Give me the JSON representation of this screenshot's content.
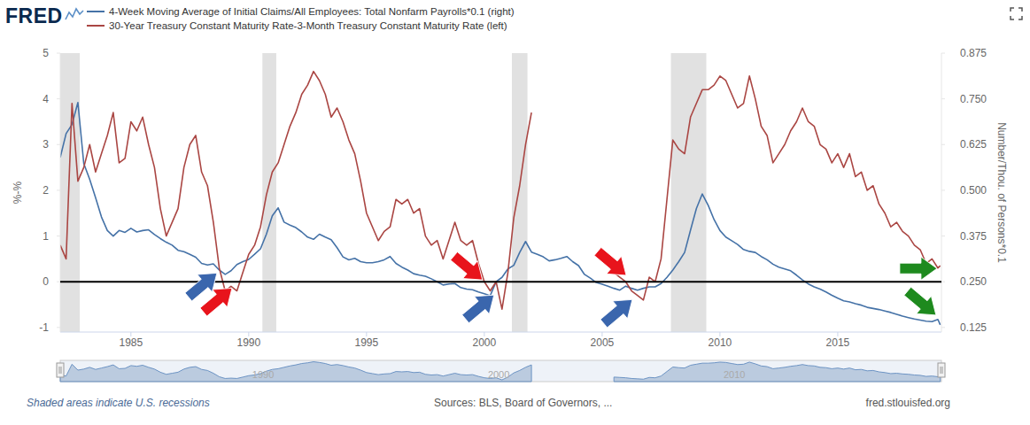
{
  "chart_data": {
    "type": "line",
    "logo": "FRED",
    "note": "Shaded areas indicate U.S. recessions",
    "source": "Sources: BLS, Board of Governors, ...",
    "website": "fred.stlouisfed.org",
    "y_label": "%-%",
    "y2_label": "Number/Thou. of Persons*0.1",
    "legend": "top",
    "grid": false,
    "x": [
      1982,
      1982.25,
      1982.5,
      1982.75,
      1983,
      1983.25,
      1983.5,
      1983.75,
      1984,
      1984.25,
      1984.5,
      1984.75,
      1985,
      1985.25,
      1985.5,
      1985.75,
      1986,
      1986.25,
      1986.5,
      1986.75,
      1987,
      1987.25,
      1987.5,
      1987.75,
      1988,
      1988.25,
      1988.5,
      1988.75,
      1989,
      1989.25,
      1989.5,
      1989.75,
      1990,
      1990.25,
      1990.5,
      1990.75,
      1991,
      1991.25,
      1991.5,
      1991.75,
      1992,
      1992.25,
      1992.5,
      1992.75,
      1993,
      1993.25,
      1993.5,
      1993.75,
      1994,
      1994.25,
      1994.5,
      1994.75,
      1995,
      1995.25,
      1995.5,
      1995.75,
      1996,
      1996.25,
      1996.5,
      1996.75,
      1997,
      1997.25,
      1997.5,
      1997.75,
      1998,
      1998.25,
      1998.5,
      1998.75,
      1999,
      1999.25,
      1999.5,
      1999.75,
      2000,
      2000.25,
      2000.5,
      2000.75,
      2001,
      2001.25,
      2001.5,
      2001.75,
      2002,
      2002.25,
      2002.5,
      2002.75,
      2003,
      2003.25,
      2003.5,
      2003.75,
      2004,
      2004.25,
      2004.5,
      2004.75,
      2005,
      2005.25,
      2005.5,
      2005.75,
      2006,
      2006.25,
      2006.5,
      2006.75,
      2007,
      2007.25,
      2007.5,
      2007.75,
      2008,
      2008.25,
      2008.5,
      2008.75,
      2009,
      2009.25,
      2009.5,
      2009.75,
      2010,
      2010.25,
      2010.5,
      2010.75,
      2011,
      2011.25,
      2011.5,
      2011.75,
      2012,
      2012.25,
      2012.5,
      2012.75,
      2013,
      2013.25,
      2013.5,
      2013.75,
      2014,
      2014.25,
      2014.5,
      2014.75,
      2015,
      2015.25,
      2015.5,
      2015.75,
      2016,
      2016.25,
      2016.5,
      2016.75,
      2017,
      2017.25,
      2017.5,
      2017.75,
      2018,
      2018.25,
      2018.5,
      2018.75,
      2019,
      2019.25,
      2019.35
    ],
    "series": [
      {
        "name": "4-Week Moving Average of Initial Claims/All Employees: Total Nonfarm Payrolls*0.1 (right)",
        "color": "#4572a7",
        "axis": "y2",
        "values": [
          0.59,
          0.655,
          0.68,
          0.74,
          0.573,
          0.53,
          0.48,
          0.427,
          0.39,
          0.375,
          0.39,
          0.385,
          0.396,
          0.386,
          0.39,
          0.392,
          0.379,
          0.368,
          0.358,
          0.35,
          0.336,
          0.332,
          0.325,
          0.317,
          0.3,
          0.296,
          0.299,
          0.282,
          0.27,
          0.28,
          0.297,
          0.305,
          0.311,
          0.325,
          0.34,
          0.38,
          0.43,
          0.452,
          0.413,
          0.405,
          0.398,
          0.386,
          0.372,
          0.366,
          0.38,
          0.372,
          0.365,
          0.343,
          0.318,
          0.31,
          0.314,
          0.305,
          0.302,
          0.302,
          0.305,
          0.31,
          0.319,
          0.3,
          0.29,
          0.282,
          0.272,
          0.268,
          0.265,
          0.258,
          0.25,
          0.241,
          0.244,
          0.245,
          0.234,
          0.23,
          0.228,
          0.222,
          0.217,
          0.212,
          0.25,
          0.262,
          0.285,
          0.295,
          0.33,
          0.36,
          0.331,
          0.325,
          0.318,
          0.307,
          0.31,
          0.314,
          0.319,
          0.305,
          0.294,
          0.27,
          0.26,
          0.248,
          0.243,
          0.238,
          0.232,
          0.227,
          0.238,
          0.232,
          0.227,
          0.232,
          0.236,
          0.236,
          0.245,
          0.262,
          0.282,
          0.305,
          0.33,
          0.391,
          0.45,
          0.49,
          0.459,
          0.42,
          0.39,
          0.372,
          0.362,
          0.352,
          0.338,
          0.333,
          0.33,
          0.319,
          0.31,
          0.298,
          0.29,
          0.285,
          0.28,
          0.268,
          0.255,
          0.244,
          0.236,
          0.23,
          0.222,
          0.213,
          0.205,
          0.198,
          0.195,
          0.19,
          0.186,
          0.18,
          0.177,
          0.174,
          0.17,
          0.166,
          0.161,
          0.156,
          0.152,
          0.148,
          0.145,
          0.142,
          0.141,
          0.147,
          0.132
        ]
      },
      {
        "name": "30-Year Treasury Constant Maturity Rate-3-Month Treasury Constant Maturity Rate (left)",
        "color": "#aa4643",
        "axis": "y",
        "values": [
          0.8,
          0.5,
          3.9,
          2.2,
          2.5,
          3.0,
          2.4,
          2.8,
          3.2,
          3.7,
          2.6,
          2.7,
          3.5,
          3.3,
          3.6,
          3.0,
          2.5,
          1.6,
          1.0,
          1.3,
          1.6,
          2.5,
          3.0,
          3.2,
          2.4,
          2.1,
          1.3,
          0.3,
          -0.2,
          -0.1,
          -0.2,
          0.2,
          0.6,
          0.8,
          1.2,
          1.9,
          2.4,
          2.6,
          3.0,
          3.4,
          3.7,
          4.1,
          4.3,
          4.6,
          4.4,
          4.1,
          3.6,
          3.8,
          3.5,
          3.1,
          2.8,
          2.2,
          1.5,
          1.2,
          0.9,
          1.1,
          1.2,
          1.8,
          1.7,
          1.8,
          1.5,
          1.6,
          1.0,
          0.8,
          0.9,
          0.5,
          0.9,
          1.3,
          0.9,
          0.8,
          0.9,
          0.4,
          0.0,
          -0.2,
          0.0,
          -0.6,
          0.2,
          1.4,
          2.1,
          3.0,
          3.7,
          null,
          null,
          null,
          null,
          null,
          null,
          null,
          null,
          null,
          null,
          null,
          null,
          null,
          0.2,
          0.1,
          0.0,
          -0.2,
          -0.3,
          -0.4,
          0.1,
          0.0,
          0.5,
          1.8,
          3.1,
          2.9,
          2.8,
          3.6,
          3.9,
          4.2,
          4.2,
          4.3,
          4.5,
          4.4,
          4.1,
          3.8,
          3.9,
          4.5,
          4.0,
          3.4,
          3.2,
          2.6,
          2.8,
          3.0,
          3.3,
          3.5,
          3.8,
          3.5,
          3.4,
          3.0,
          2.9,
          2.6,
          2.8,
          2.5,
          2.8,
          2.3,
          2.4,
          2.0,
          2.1,
          1.7,
          1.5,
          1.2,
          1.3,
          1.1,
          1.0,
          0.8,
          0.7,
          0.4,
          0.5,
          0.3,
          0.35
        ]
      }
    ],
    "xlim": [
      1982,
      2019.4
    ],
    "xticks": [
      1985,
      1990,
      1995,
      2000,
      2005,
      2010,
      2015
    ],
    "ylim": [
      -1.1,
      5
    ],
    "yticks": [
      -1,
      0,
      1,
      2,
      3,
      4,
      5
    ],
    "y2lim": [
      0.1125,
      0.875
    ],
    "y2ticks": [
      0.125,
      {
        "value": 0.25,
        "label": "0.250"
      },
      0.375,
      {
        "value": 0.5,
        "label": "0.500"
      },
      0.625,
      {
        "value": 0.75,
        "label": "0.750"
      },
      0.875
    ],
    "recessions": [
      [
        1981.5,
        1982.83
      ],
      [
        1990.58,
        1991.17
      ],
      [
        2001.17,
        2001.83
      ],
      [
        2007.92,
        2009.42
      ]
    ],
    "navigator_ticks": [
      1990,
      2000,
      2010
    ],
    "annotations": [
      {
        "type": "hline",
        "y": 0,
        "color": "#000000"
      },
      {
        "type": "arrow",
        "x": 1988.65,
        "y": 0.19,
        "color": "#3a66ad",
        "direction": "up-right"
      },
      {
        "type": "arrow",
        "x": 1989.29,
        "y": -0.14,
        "color": "#e8141c",
        "direction": "up-right"
      },
      {
        "type": "arrow",
        "x": 1999.92,
        "y": 0.04,
        "color": "#e8141c",
        "direction": "down-right"
      },
      {
        "type": "arrow",
        "x": 2000.41,
        "y": -0.29,
        "color": "#3a66ad",
        "direction": "up-right"
      },
      {
        "type": "arrow",
        "x": 2006.02,
        "y": 0.14,
        "color": "#e8141c",
        "direction": "down-right"
      },
      {
        "type": "arrow",
        "x": 2006.28,
        "y": -0.39,
        "color": "#3a66ad",
        "direction": "up-right"
      },
      {
        "type": "arrow",
        "x": 2019.21,
        "y": 0.29,
        "color": "#1e8a1e",
        "direction": "right"
      },
      {
        "type": "arrow",
        "x": 2019.17,
        "y": -0.73,
        "color": "#1e8a1e",
        "direction": "down-right"
      }
    ]
  }
}
